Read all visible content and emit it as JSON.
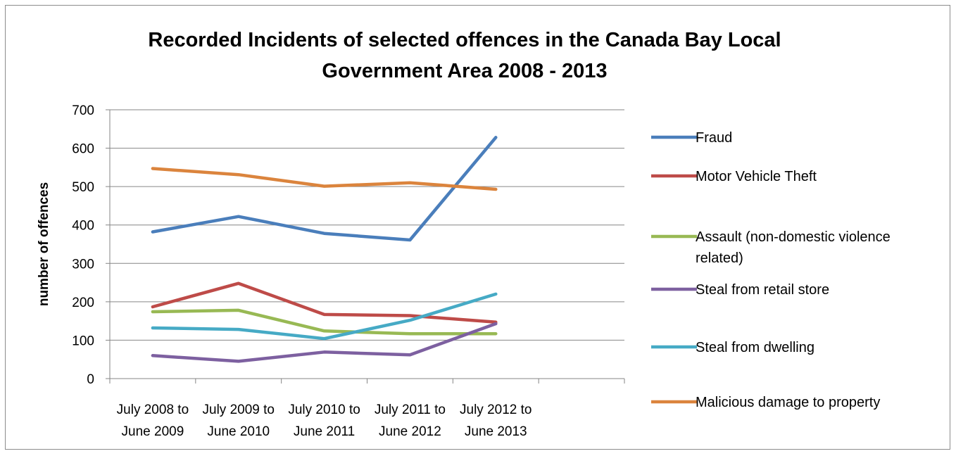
{
  "chart_data": {
    "type": "line",
    "title_lines": [
      "Recorded Incidents of selected offences in the Canada Bay Local",
      "Government Area 2008 - 2013"
    ],
    "xlabel": "",
    "ylabel": "number of offences",
    "ylim": [
      0,
      700
    ],
    "yticks": [
      "0",
      "100",
      "200",
      "300",
      "400",
      "500",
      "600",
      "700"
    ],
    "grid": true,
    "legend_position": "right",
    "categories": [
      [
        "July 2008 to",
        "June 2009"
      ],
      [
        "July 2009 to",
        "June 2010"
      ],
      [
        "July 2010 to",
        "June 2011"
      ],
      [
        "July 2011 to",
        "June 2012"
      ],
      [
        "July 2012 to",
        "June 2013"
      ]
    ],
    "series": [
      {
        "name": "Fraud",
        "legend_lines": [
          "Fraud"
        ],
        "color": "#4A7EBB",
        "values": [
          382,
          422,
          378,
          361,
          628
        ]
      },
      {
        "name": "Motor Vehicle Theft",
        "legend_lines": [
          "Motor Vehicle Theft"
        ],
        "color": "#BE4B48",
        "values": [
          187,
          248,
          167,
          164,
          147
        ]
      },
      {
        "name": "Assault (non-domestic violence related)",
        "legend_lines": [
          "Assault (non-domestic violence",
          "related)"
        ],
        "color": "#98B954",
        "values": [
          174,
          178,
          124,
          117,
          117
        ]
      },
      {
        "name": "Steal from retail store",
        "legend_lines": [
          "Steal from retail store"
        ],
        "color": "#7D60A0",
        "values": [
          60,
          45,
          69,
          62,
          143
        ]
      },
      {
        "name": "Steal from dwelling",
        "legend_lines": [
          "Steal from dwelling"
        ],
        "color": "#46AAC5",
        "values": [
          132,
          128,
          104,
          152,
          220
        ]
      },
      {
        "name": "Malicious damage to property",
        "legend_lines": [
          "Malicious damage to property"
        ],
        "color": "#DB843D",
        "values": [
          547,
          531,
          501,
          510,
          493
        ]
      }
    ]
  }
}
